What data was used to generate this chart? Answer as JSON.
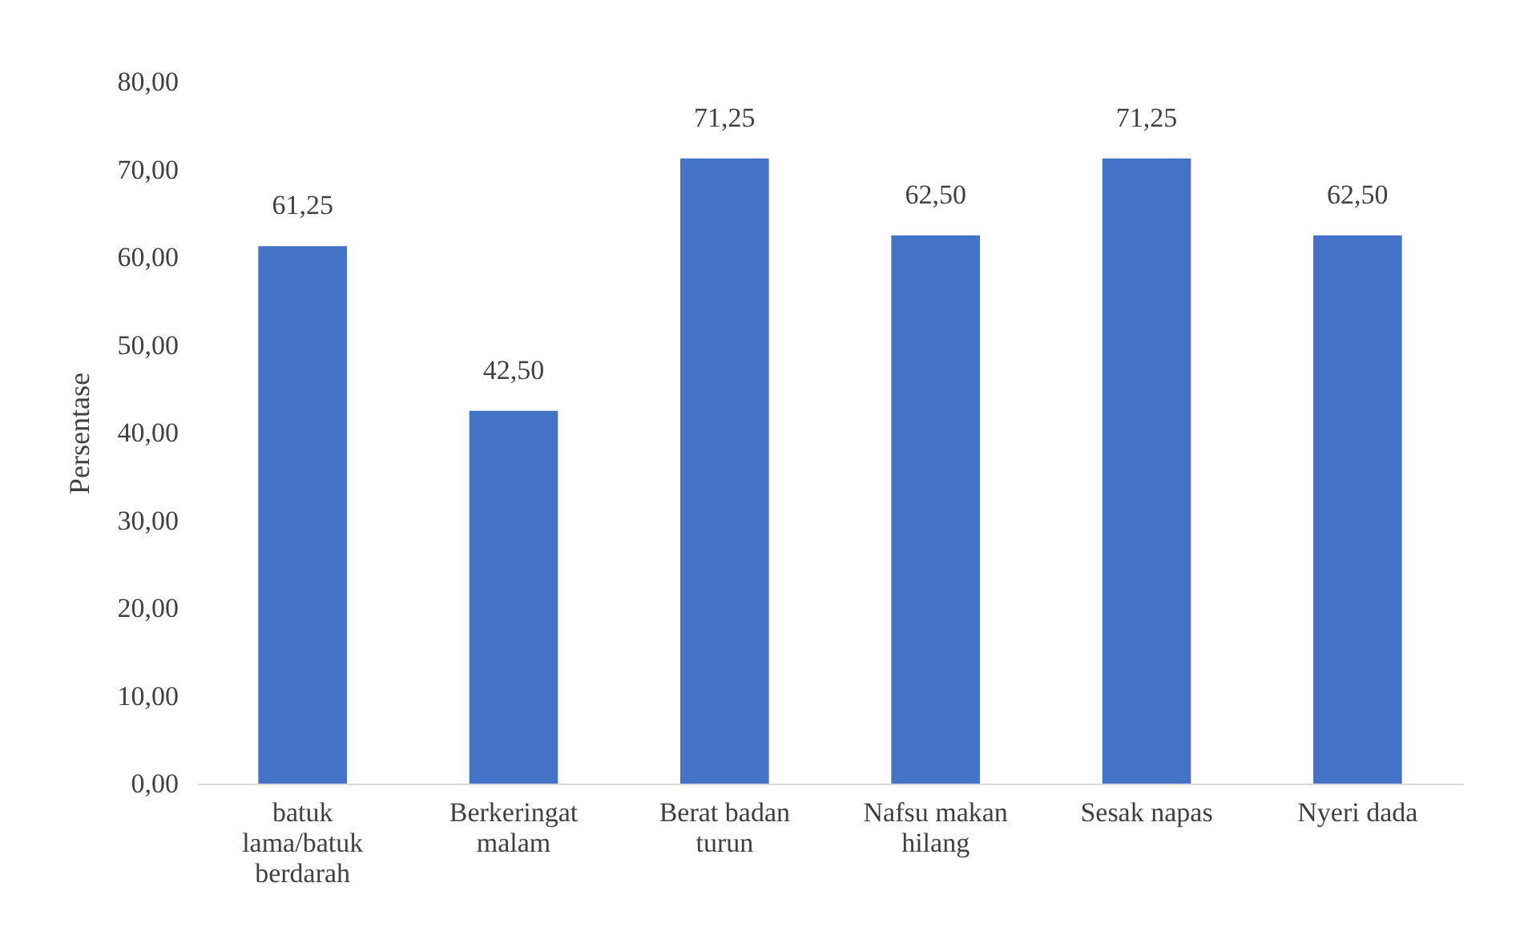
{
  "chart_data": {
    "type": "bar",
    "ylabel": "Persentase",
    "categories": [
      "batuk lama/batuk berdarah",
      "Berkeringat malam",
      "Berat badan turun",
      "Nafsu makan hilang",
      "Sesak napas",
      "Nyeri dada"
    ],
    "values": [
      61.25,
      42.5,
      71.25,
      62.5,
      71.25,
      62.5
    ],
    "value_labels": [
      "61,25",
      "42,50",
      "71,25",
      "62,50",
      "71,25",
      "62,50"
    ],
    "color": "#4472c4",
    "ylim": [
      0,
      80
    ],
    "yticks": [
      {
        "value": 0,
        "label": "0,00"
      },
      {
        "value": 10,
        "label": "10,00"
      },
      {
        "value": 20,
        "label": "20,00"
      },
      {
        "value": 30,
        "label": "30,00"
      },
      {
        "value": 40,
        "label": "40,00"
      },
      {
        "value": 50,
        "label": "50,00"
      },
      {
        "value": 60,
        "label": "60,00"
      },
      {
        "value": 70,
        "label": "70,00"
      },
      {
        "value": 80,
        "label": "80,00"
      }
    ],
    "grid": false
  }
}
